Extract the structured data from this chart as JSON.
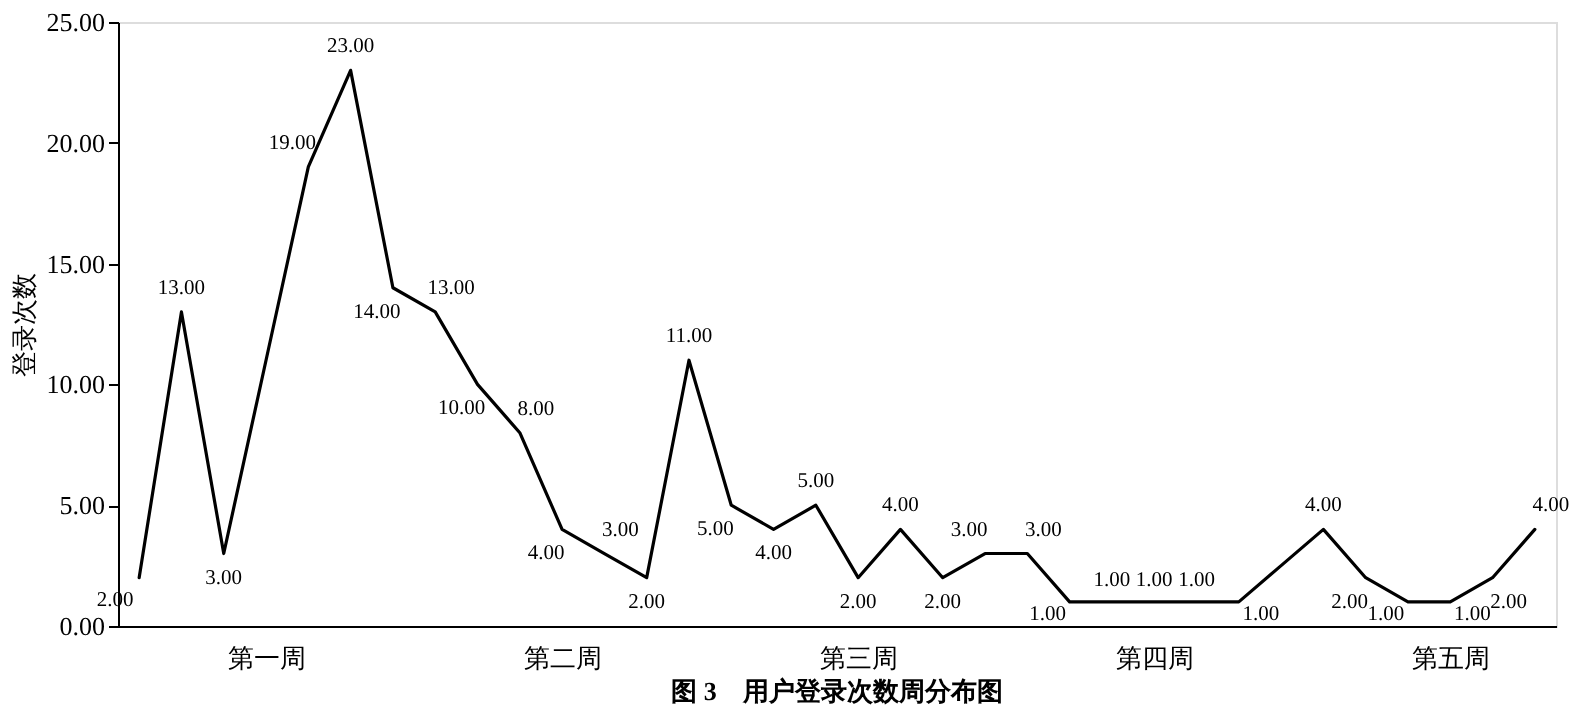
{
  "chart_data": {
    "type": "line",
    "title": "图 3　用户登录次数周分布图",
    "ylabel": "登录次数",
    "categories": [
      null,
      null,
      null,
      "第一周",
      null,
      null,
      null,
      null,
      null,
      null,
      "第二周",
      null,
      null,
      null,
      null,
      null,
      null,
      "第三周",
      null,
      null,
      null,
      null,
      null,
      null,
      "第四周",
      null,
      null,
      null,
      null,
      null,
      null,
      "第五周",
      null,
      null
    ],
    "values": [
      2,
      13,
      3,
      11,
      19,
      23,
      14,
      13,
      10,
      8,
      4,
      3,
      2,
      11,
      5,
      4,
      5,
      2,
      4,
      2,
      3,
      3,
      1,
      1,
      1,
      1,
      1,
      2.5,
      4,
      2,
      1,
      1,
      2,
      4
    ],
    "value_labels": [
      "2.00",
      "13.00",
      "3.00",
      null,
      "19.00",
      "23.00",
      "14.00",
      "13.00",
      "10.00",
      "8.00",
      "4.00",
      "3.00",
      "2.00",
      "11.00",
      "5.00",
      "4.00",
      "5.00",
      "2.00",
      "4.00",
      "2.00",
      "3.00",
      "3.00",
      "1.00",
      "1.00",
      "1.00",
      "1.00",
      "1.00",
      null,
      "4.00",
      "2.00",
      "1.00",
      "1.00",
      "2.00",
      "4.00"
    ],
    "color": "#000000",
    "marker": "none",
    "grid": false,
    "ylim": [
      0,
      25
    ],
    "yticks": [
      {
        "value": 0,
        "label": "0.00"
      },
      {
        "value": 5,
        "label": "5.00"
      },
      {
        "value": 10,
        "label": "10.00"
      },
      {
        "value": 15,
        "label": "15.00"
      },
      {
        "value": 20,
        "label": "20.00"
      },
      {
        "value": 25,
        "label": "25.00"
      }
    ]
  }
}
